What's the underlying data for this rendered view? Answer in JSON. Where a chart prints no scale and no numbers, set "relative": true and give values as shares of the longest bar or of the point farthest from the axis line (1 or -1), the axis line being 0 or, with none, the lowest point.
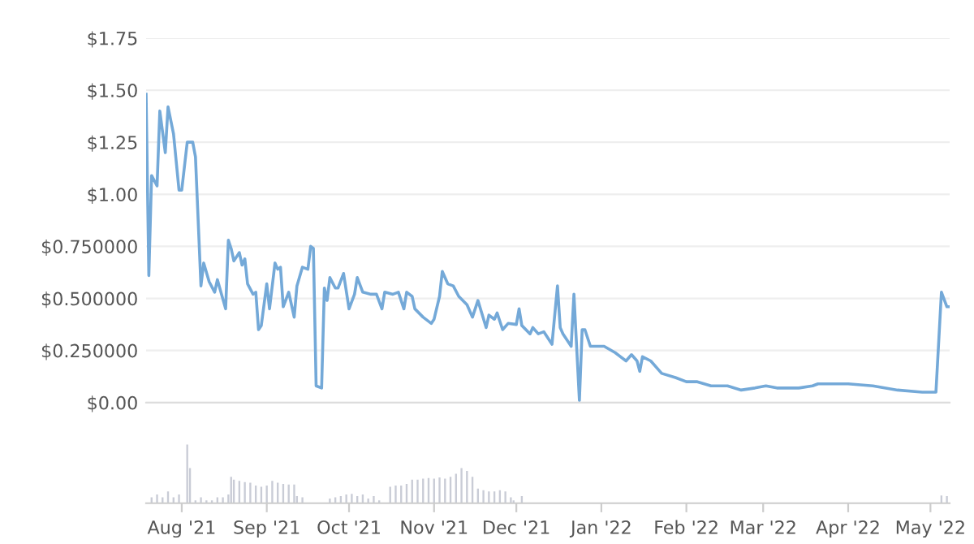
{
  "chart_data": [
    {
      "type": "line",
      "color": "#74a9d8",
      "line_style": "solid",
      "marker": "none",
      "grid": "y",
      "legend": false,
      "tick_labels": "y",
      "x": [
        "2021-07-19",
        "2021-07-20",
        "2021-07-21",
        "2021-07-23",
        "2021-07-24",
        "2021-07-26",
        "2021-07-27",
        "2021-07-29",
        "2021-07-31",
        "2021-08-01",
        "2021-08-03",
        "2021-08-05",
        "2021-08-06",
        "2021-08-08",
        "2021-08-09",
        "2021-08-11",
        "2021-08-13",
        "2021-08-14",
        "2021-08-17",
        "2021-08-18",
        "2021-08-19",
        "2021-08-20",
        "2021-08-22",
        "2021-08-23",
        "2021-08-24",
        "2021-08-25",
        "2021-08-27",
        "2021-08-28",
        "2021-08-29",
        "2021-08-30",
        "2021-09-01",
        "2021-09-02",
        "2021-09-04",
        "2021-09-05",
        "2021-09-06",
        "2021-09-07",
        "2021-09-09",
        "2021-09-11",
        "2021-09-12",
        "2021-09-14",
        "2021-09-16",
        "2021-09-17",
        "2021-09-18",
        "2021-09-19",
        "2021-09-21",
        "2021-09-22",
        "2021-09-23",
        "2021-09-24",
        "2021-09-26",
        "2021-09-27",
        "2021-09-29",
        "2021-10-01",
        "2021-10-03",
        "2021-10-04",
        "2021-10-06",
        "2021-10-09",
        "2021-10-11",
        "2021-10-13",
        "2021-10-14",
        "2021-10-17",
        "2021-10-19",
        "2021-10-21",
        "2021-10-22",
        "2021-10-24",
        "2021-10-25",
        "2021-10-28",
        "2021-10-31",
        "2021-11-01",
        "2021-11-03",
        "2021-11-04",
        "2021-11-06",
        "2021-11-08",
        "2021-11-10",
        "2021-11-13",
        "2021-11-15",
        "2021-11-17",
        "2021-11-20",
        "2021-11-21",
        "2021-11-23",
        "2021-11-24",
        "2021-11-26",
        "2021-11-28",
        "2021-12-01",
        "2021-12-02",
        "2021-12-03",
        "2021-12-06",
        "2021-12-07",
        "2021-12-09",
        "2021-12-11",
        "2021-12-14",
        "2021-12-16",
        "2021-12-17",
        "2021-12-18",
        "2021-12-21",
        "2021-12-22",
        "2021-12-24",
        "2021-12-25",
        "2021-12-26",
        "2021-12-28",
        "2022-01-02",
        "2022-01-06",
        "2022-01-10",
        "2022-01-12",
        "2022-01-14",
        "2022-01-15",
        "2022-01-16",
        "2022-01-19",
        "2022-01-23",
        "2022-01-28",
        "2022-02-01",
        "2022-02-05",
        "2022-02-10",
        "2022-02-16",
        "2022-02-21",
        "2022-02-26",
        "2022-03-02",
        "2022-03-06",
        "2022-03-14",
        "2022-03-19",
        "2022-03-21",
        "2022-04-01",
        "2022-04-10",
        "2022-04-19",
        "2022-04-28",
        "2022-05-03",
        "2022-05-05",
        "2022-05-07",
        "2022-05-08"
      ],
      "values": [
        1.48,
        0.61,
        1.09,
        1.04,
        1.4,
        1.2,
        1.42,
        1.29,
        1.02,
        1.02,
        1.25,
        1.25,
        1.18,
        0.56,
        0.67,
        0.58,
        0.53,
        0.59,
        0.45,
        0.78,
        0.74,
        0.68,
        0.72,
        0.66,
        0.69,
        0.57,
        0.52,
        0.53,
        0.35,
        0.37,
        0.57,
        0.45,
        0.67,
        0.64,
        0.65,
        0.46,
        0.53,
        0.41,
        0.56,
        0.65,
        0.64,
        0.75,
        0.74,
        0.08,
        0.07,
        0.55,
        0.49,
        0.6,
        0.55,
        0.55,
        0.62,
        0.45,
        0.52,
        0.6,
        0.53,
        0.52,
        0.52,
        0.45,
        0.53,
        0.52,
        0.53,
        0.45,
        0.53,
        0.51,
        0.45,
        0.41,
        0.38,
        0.4,
        0.51,
        0.63,
        0.57,
        0.56,
        0.51,
        0.47,
        0.41,
        0.49,
        0.36,
        0.42,
        0.4,
        0.43,
        0.35,
        0.38,
        0.375,
        0.45,
        0.37,
        0.33,
        0.36,
        0.33,
        0.34,
        0.28,
        0.56,
        0.36,
        0.33,
        0.27,
        0.52,
        0.01,
        0.35,
        0.35,
        0.27,
        0.27,
        0.24,
        0.2,
        0.23,
        0.2,
        0.15,
        0.22,
        0.2,
        0.14,
        0.12,
        0.1,
        0.1,
        0.08,
        0.08,
        0.06,
        0.07,
        0.08,
        0.07,
        0.07,
        0.08,
        0.09,
        0.09,
        0.08,
        0.06,
        0.05,
        0.05,
        0.53,
        0.46,
        0.46
      ],
      "xlim": [
        "2021-07-19",
        "2022-05-08"
      ],
      "ylim": [
        0,
        1.75
      ],
      "yticks": [
        {
          "value": 0,
          "label": "$0.00"
        },
        {
          "value": 0.25,
          "label": "$0.250000"
        },
        {
          "value": 0.5,
          "label": "$0.500000"
        },
        {
          "value": 0.75,
          "label": "$0.750000"
        },
        {
          "value": 1.0,
          "label": "$1.00"
        },
        {
          "value": 1.25,
          "label": "$1.25"
        },
        {
          "value": 1.5,
          "label": "$1.50"
        },
        {
          "value": 1.75,
          "label": "$1.75"
        }
      ]
    },
    {
      "type": "bar",
      "relative": true,
      "color": "#c9ccd6",
      "grid": false,
      "legend": false,
      "tick_labels": "x",
      "x": [
        "2021-07-21",
        "2021-07-23",
        "2021-07-25",
        "2021-07-27",
        "2021-07-29",
        "2021-07-31",
        "2021-08-03",
        "2021-08-04",
        "2021-08-06",
        "2021-08-08",
        "2021-08-10",
        "2021-08-12",
        "2021-08-14",
        "2021-08-16",
        "2021-08-18",
        "2021-08-19",
        "2021-08-20",
        "2021-08-22",
        "2021-08-24",
        "2021-08-26",
        "2021-08-28",
        "2021-08-30",
        "2021-09-01",
        "2021-09-03",
        "2021-09-05",
        "2021-09-07",
        "2021-09-09",
        "2021-09-11",
        "2021-09-12",
        "2021-09-14",
        "2021-09-24",
        "2021-09-26",
        "2021-09-28",
        "2021-09-30",
        "2021-10-02",
        "2021-10-04",
        "2021-10-06",
        "2021-10-08",
        "2021-10-10",
        "2021-10-12",
        "2021-10-16",
        "2021-10-18",
        "2021-10-20",
        "2021-10-22",
        "2021-10-24",
        "2021-10-26",
        "2021-10-28",
        "2021-10-30",
        "2021-11-01",
        "2021-11-03",
        "2021-11-05",
        "2021-11-07",
        "2021-11-09",
        "2021-11-11",
        "2021-11-13",
        "2021-11-15",
        "2021-11-17",
        "2021-11-19",
        "2021-11-21",
        "2021-11-23",
        "2021-11-25",
        "2021-11-27",
        "2021-11-29",
        "2021-11-30",
        "2021-12-03",
        "2022-05-05",
        "2022-05-07"
      ],
      "values": [
        0.1,
        0.15,
        0.1,
        0.2,
        0.1,
        0.15,
        1.0,
        0.6,
        0.05,
        0.1,
        0.05,
        0.05,
        0.1,
        0.1,
        0.15,
        0.45,
        0.4,
        0.38,
        0.36,
        0.35,
        0.3,
        0.28,
        0.3,
        0.38,
        0.35,
        0.33,
        0.32,
        0.32,
        0.12,
        0.1,
        0.08,
        0.1,
        0.12,
        0.15,
        0.16,
        0.12,
        0.15,
        0.08,
        0.12,
        0.05,
        0.28,
        0.3,
        0.3,
        0.33,
        0.4,
        0.4,
        0.42,
        0.43,
        0.42,
        0.44,
        0.42,
        0.45,
        0.5,
        0.6,
        0.55,
        0.45,
        0.25,
        0.22,
        0.2,
        0.2,
        0.22,
        0.2,
        0.1,
        0.05,
        0.12,
        0.13,
        0.12
      ],
      "xlim": [
        "2021-07-19",
        "2022-05-08"
      ],
      "xticks": [
        {
          "value": "2021-08-01",
          "label": "Aug '21"
        },
        {
          "value": "2021-09-01",
          "label": "Sep '21"
        },
        {
          "value": "2021-10-01",
          "label": "Oct '21"
        },
        {
          "value": "2021-11-01",
          "label": "Nov '21"
        },
        {
          "value": "2021-12-01",
          "label": "Dec '21"
        },
        {
          "value": "2022-01-01",
          "label": "Jan '22"
        },
        {
          "value": "2022-02-01",
          "label": "Feb '22"
        },
        {
          "value": "2022-03-01",
          "label": "Mar '22"
        },
        {
          "value": "2022-04-01",
          "label": "Apr '22"
        },
        {
          "value": "2022-05-01",
          "label": "May '22"
        }
      ]
    }
  ]
}
